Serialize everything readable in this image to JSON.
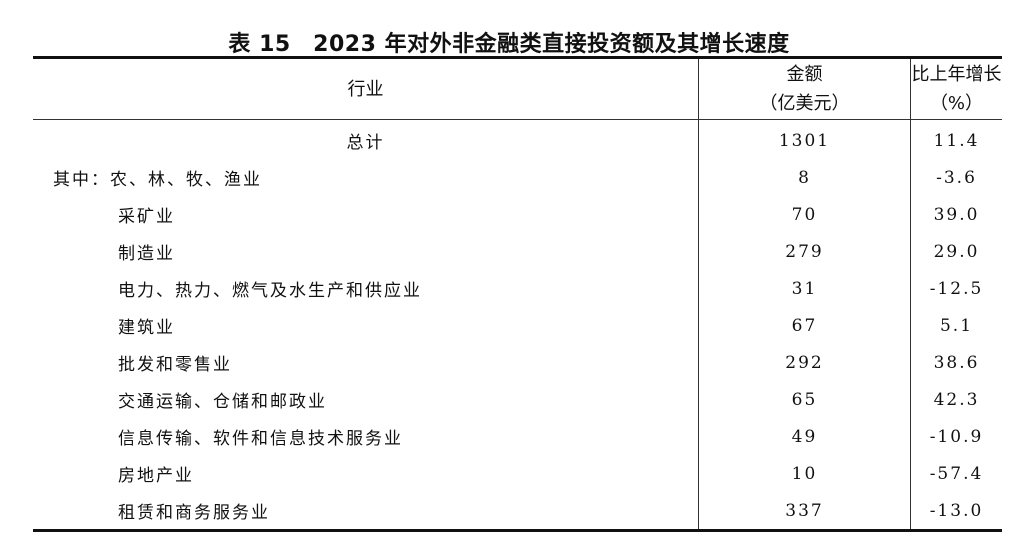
{
  "title": "表 15　2023 年对外非金融类直接投资额及其增长速度",
  "headers": {
    "industry": "行业",
    "amount_line1": "金额",
    "amount_line2": "（亿美元）",
    "growth_line1": "比上年增长",
    "growth_line2": "（%）"
  },
  "rows": [
    {
      "label": "总计",
      "amount": "1301",
      "growth": "11.4"
    },
    {
      "label": "其中：农、林、牧、渔业",
      "amount": "8",
      "growth": "-3.6"
    },
    {
      "label": "采矿业",
      "amount": "70",
      "growth": "39.0"
    },
    {
      "label": "制造业",
      "amount": "279",
      "growth": "29.0"
    },
    {
      "label": "电力、热力、燃气及水生产和供应业",
      "amount": "31",
      "growth": "-12.5"
    },
    {
      "label": "建筑业",
      "amount": "67",
      "growth": "5.1"
    },
    {
      "label": "批发和零售业",
      "amount": "292",
      "growth": "38.6"
    },
    {
      "label": "交通运输、仓储和邮政业",
      "amount": "65",
      "growth": "42.3"
    },
    {
      "label": "信息传输、软件和信息技术服务业",
      "amount": "49",
      "growth": "-10.9"
    },
    {
      "label": "房地产业",
      "amount": "10",
      "growth": "-57.4"
    },
    {
      "label": "租赁和商务服务业",
      "amount": "337",
      "growth": "-13.0"
    }
  ]
}
